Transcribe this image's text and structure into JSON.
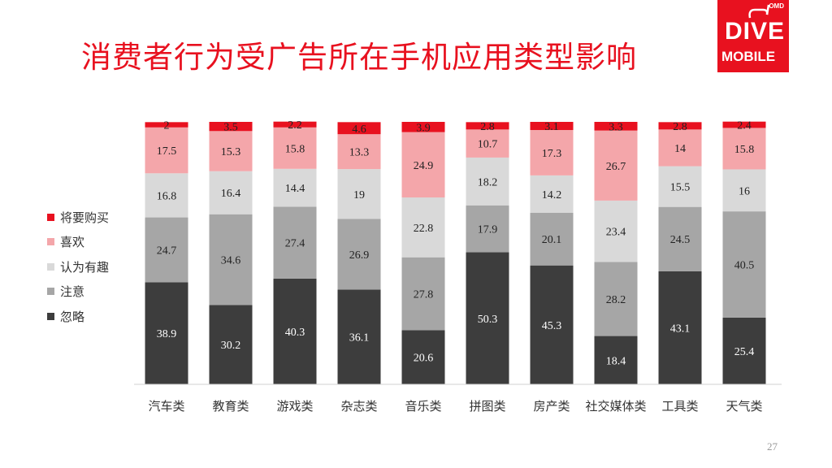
{
  "title": "消费者行为受广告所在手机应用类型影响",
  "page_number": "27",
  "logo": {
    "top_small": "OMD",
    "line1": "DIVE",
    "line2": "MOBILE"
  },
  "colors": {
    "title_red": "#e8111f",
    "series": [
      "#3d3d3d",
      "#a6a6a6",
      "#d9d9d9",
      "#f4a6aa",
      "#e8111f"
    ]
  },
  "chart_data": {
    "type": "bar",
    "stacked": true,
    "categories": [
      "汽车类",
      "教育类",
      "游戏类",
      "杂志类",
      "音乐类",
      "拼图类",
      "房产类",
      "社交媒体类",
      "工具类",
      "天气类"
    ],
    "series": [
      {
        "name": "忽略",
        "values": [
          38.9,
          30.2,
          40.3,
          36.1,
          20.6,
          50.3,
          45.3,
          18.4,
          43.1,
          25.4
        ]
      },
      {
        "name": "注意",
        "values": [
          24.7,
          34.6,
          27.4,
          26.9,
          27.8,
          17.9,
          20.1,
          28.2,
          24.5,
          40.5
        ]
      },
      {
        "name": "认为有趣",
        "values": [
          16.8,
          16.4,
          14.4,
          19,
          22.8,
          18.2,
          14.2,
          23.4,
          15.5,
          16
        ]
      },
      {
        "name": "喜欢",
        "values": [
          17.5,
          15.3,
          15.8,
          13.3,
          24.9,
          10.7,
          17.3,
          26.7,
          14,
          15.8
        ]
      },
      {
        "name": "将要购买",
        "values": [
          2,
          3.5,
          2.2,
          4.6,
          3.9,
          2.8,
          3.1,
          3.3,
          2.8,
          2.4
        ]
      }
    ],
    "legend_order": [
      "将要购买",
      "喜欢",
      "认为有趣",
      "注意",
      "忽略"
    ],
    "legend_position": "left",
    "ylim": [
      0,
      100
    ],
    "grid": false
  }
}
